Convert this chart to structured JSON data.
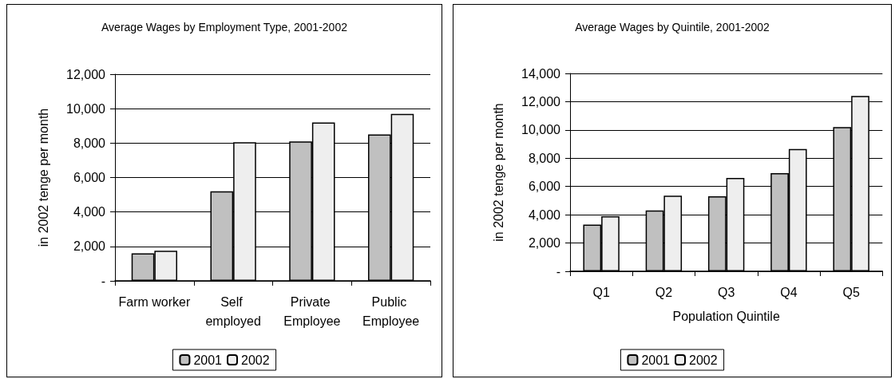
{
  "chart_data": [
    {
      "type": "bar",
      "title": "Average Wages by Employment Type, 2001-2002",
      "ylabel": "in 2002 tenge per month",
      "categories": [
        "Farm worker",
        "Self employed",
        "Private Employee",
        "Public Employee"
      ],
      "series": [
        {
          "name": "2001",
          "color": "#c0c0c0",
          "values": [
            1600,
            5200,
            8100,
            8500
          ]
        },
        {
          "name": "2002",
          "color": "#eeeeee",
          "values": [
            1750,
            8050,
            9200,
            9700
          ]
        }
      ],
      "ylim": [
        0,
        12000
      ],
      "yticks": [
        {
          "value": 0,
          "label": "-"
        },
        {
          "value": 2000,
          "label": "2,000"
        },
        {
          "value": 4000,
          "label": "4,000"
        },
        {
          "value": 6000,
          "label": "6,000"
        },
        {
          "value": 8000,
          "label": "8,000"
        },
        {
          "value": 10000,
          "label": "10,000"
        },
        {
          "value": 12000,
          "label": "12,000"
        }
      ],
      "grid": "y",
      "legend": "bottom"
    },
    {
      "type": "bar",
      "title": "Average Wages by Quintile, 2001-2002",
      "ylabel": "in 2002 tenge per month",
      "xlabel": "Population Quintile",
      "categories": [
        "Q1",
        "Q2",
        "Q3",
        "Q4",
        "Q5"
      ],
      "series": [
        {
          "name": "2001",
          "color": "#c0c0c0",
          "values": [
            3300,
            4300,
            5300,
            6950,
            10200
          ]
        },
        {
          "name": "2002",
          "color": "#eeeeee",
          "values": [
            3900,
            5350,
            6600,
            8650,
            12400
          ]
        }
      ],
      "ylim": [
        0,
        14000
      ],
      "yticks": [
        {
          "value": 0,
          "label": "-"
        },
        {
          "value": 2000,
          "label": "2,000"
        },
        {
          "value": 4000,
          "label": "4,000"
        },
        {
          "value": 6000,
          "label": "6,000"
        },
        {
          "value": 8000,
          "label": "8,000"
        },
        {
          "value": 10000,
          "label": "10,000"
        },
        {
          "value": 12000,
          "label": "12,000"
        },
        {
          "value": 14000,
          "label": "14,000"
        }
      ],
      "grid": "y",
      "legend": "bottom"
    }
  ]
}
